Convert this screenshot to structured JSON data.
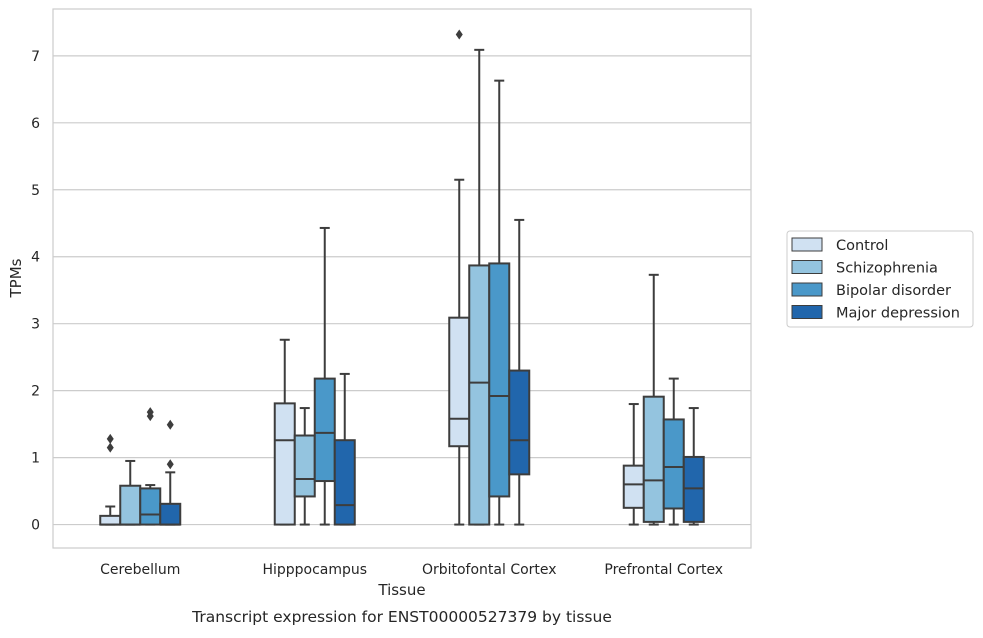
{
  "chart_data": {
    "type": "box",
    "title": "",
    "caption": "Transcript expression for ENST00000527379 by tissue",
    "xlabel": "Tissue",
    "ylabel": "TPMs",
    "ylim": [
      -0.35,
      7.7
    ],
    "yticks": [
      0,
      1,
      2,
      3,
      4,
      5,
      6,
      7
    ],
    "grid": "horizontal",
    "legend_position": "right",
    "categories": [
      "Cerebellum",
      "Hipppocampus",
      "Orbitofontal Cortex",
      "Prefrontal Cortex"
    ],
    "series": [
      {
        "name": "Control",
        "color": "#d0e1f2",
        "boxes": [
          {
            "whislo": 0,
            "q1": 0,
            "med": 0,
            "q3": 0.13,
            "whishi": 0.27,
            "fliers": [
              1.15,
              1.28
            ]
          },
          {
            "whislo": 0,
            "q1": 0,
            "med": 1.26,
            "q3": 1.81,
            "whishi": 2.76,
            "fliers": []
          },
          {
            "whislo": 0,
            "q1": 1.17,
            "med": 1.58,
            "q3": 3.09,
            "whishi": 5.15,
            "fliers": [
              7.32
            ]
          },
          {
            "whislo": 0,
            "q1": 0.25,
            "med": 0.6,
            "q3": 0.88,
            "whishi": 1.8,
            "fliers": []
          }
        ]
      },
      {
        "name": "Schizophrenia",
        "color": "#94c4df",
        "boxes": [
          {
            "whislo": 0,
            "q1": 0,
            "med": 0,
            "q3": 0.58,
            "whishi": 0.95,
            "fliers": []
          },
          {
            "whislo": 0,
            "q1": 0.42,
            "med": 0.68,
            "q3": 1.33,
            "whishi": 1.74,
            "fliers": []
          },
          {
            "whislo": 0,
            "q1": 0,
            "med": 2.12,
            "q3": 3.87,
            "whishi": 7.09,
            "fliers": []
          },
          {
            "whislo": 0,
            "q1": 0.04,
            "med": 0.66,
            "q3": 1.91,
            "whishi": 3.73,
            "fliers": []
          }
        ]
      },
      {
        "name": "Bipolar disorder",
        "color": "#4a98c9",
        "boxes": [
          {
            "whislo": 0,
            "q1": 0,
            "med": 0.15,
            "q3": 0.54,
            "whishi": 0.59,
            "fliers": [
              1.62,
              1.68
            ]
          },
          {
            "whislo": 0,
            "q1": 0.65,
            "med": 1.37,
            "q3": 2.18,
            "whishi": 4.43,
            "fliers": []
          },
          {
            "whislo": 0,
            "q1": 0.42,
            "med": 1.92,
            "q3": 3.9,
            "whishi": 6.63,
            "fliers": []
          },
          {
            "whislo": 0,
            "q1": 0.24,
            "med": 0.86,
            "q3": 1.57,
            "whishi": 2.18,
            "fliers": []
          }
        ]
      },
      {
        "name": "Major depression",
        "color": "#2166ac",
        "boxes": [
          {
            "whislo": 0,
            "q1": 0,
            "med": 0,
            "q3": 0.31,
            "whishi": 0.78,
            "fliers": [
              0.9,
              1.49
            ]
          },
          {
            "whislo": 0,
            "q1": 0,
            "med": 0.29,
            "q3": 1.26,
            "whishi": 2.25,
            "fliers": []
          },
          {
            "whislo": 0,
            "q1": 0.75,
            "med": 1.26,
            "q3": 2.3,
            "whishi": 4.55,
            "fliers": []
          },
          {
            "whislo": 0,
            "q1": 0.04,
            "med": 0.54,
            "q3": 1.01,
            "whishi": 1.74,
            "fliers": []
          }
        ]
      }
    ]
  }
}
